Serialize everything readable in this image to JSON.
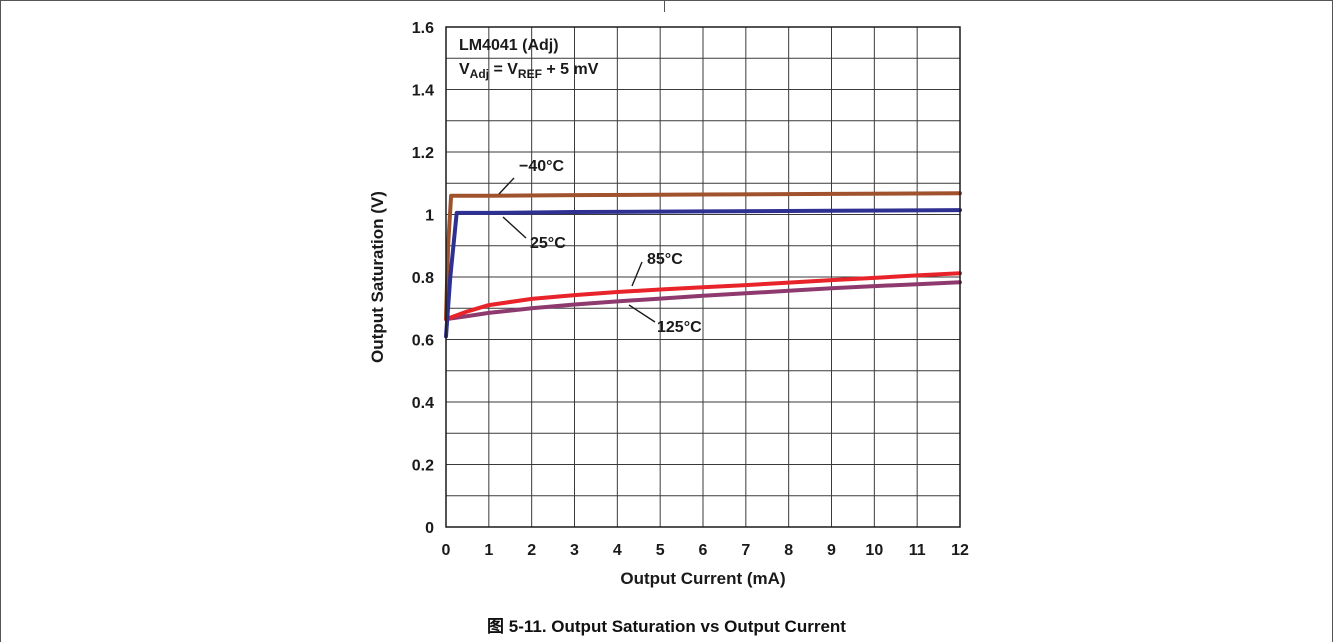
{
  "caption": "图 5-11. Output Saturation vs Output Current",
  "chart_data": {
    "type": "line",
    "xlabel": "Output Current (mA)",
    "ylabel": "Output Saturation (V)",
    "xlim": [
      0,
      12
    ],
    "ylim": [
      0,
      1.6
    ],
    "xticks": [
      "0",
      "1",
      "2",
      "3",
      "4",
      "5",
      "6",
      "7",
      "8",
      "9",
      "10",
      "11",
      "12"
    ],
    "yticks": [
      "0",
      "0.2",
      "0.4",
      "0.6",
      "0.8",
      "1",
      "1.2",
      "1.4",
      "1.6"
    ],
    "grid": true,
    "annotation": {
      "line1": "LM4041 (Adj)",
      "line2_main": "V",
      "line2_sub1": "Adj",
      "line2_mid": " = V",
      "line2_sub2": "REF",
      "line2_tail": " + 5 mV"
    },
    "series": [
      {
        "name": "−40°C",
        "color": "#a0522d",
        "x": [
          0,
          0.05,
          0.12,
          1,
          3,
          6,
          9,
          12
        ],
        "y": [
          0.67,
          0.9,
          1.06,
          1.06,
          1.062,
          1.064,
          1.066,
          1.068
        ]
      },
      {
        "name": "25°C",
        "color": "#2e3192",
        "x": [
          0,
          0.1,
          0.25,
          1,
          3,
          6,
          9,
          12
        ],
        "y": [
          0.61,
          0.8,
          1.005,
          1.005,
          1.008,
          1.01,
          1.012,
          1.014
        ]
      },
      {
        "name": "85°C",
        "color": "#e8232a",
        "x": [
          0,
          0.5,
          1,
          2,
          3,
          4,
          5,
          6,
          7,
          8,
          9,
          10,
          11,
          12
        ],
        "y": [
          0.665,
          0.69,
          0.71,
          0.73,
          0.742,
          0.752,
          0.76,
          0.767,
          0.774,
          0.782,
          0.79,
          0.797,
          0.805,
          0.812
        ]
      },
      {
        "name": "125°C",
        "color": "#8e3a6e",
        "x": [
          0,
          0.5,
          1,
          2,
          3,
          4,
          5,
          6,
          7,
          8,
          9,
          10,
          11,
          12
        ],
        "y": [
          0.665,
          0.675,
          0.685,
          0.7,
          0.712,
          0.722,
          0.731,
          0.74,
          0.748,
          0.756,
          0.764,
          0.771,
          0.777,
          0.783
        ]
      }
    ],
    "series_labels": [
      {
        "series": "−40°C",
        "text": "−40°C"
      },
      {
        "series": "25°C",
        "text": "25°C"
      },
      {
        "series": "85°C",
        "text": "85°C"
      },
      {
        "series": "125°C",
        "text": "125°C"
      }
    ]
  }
}
